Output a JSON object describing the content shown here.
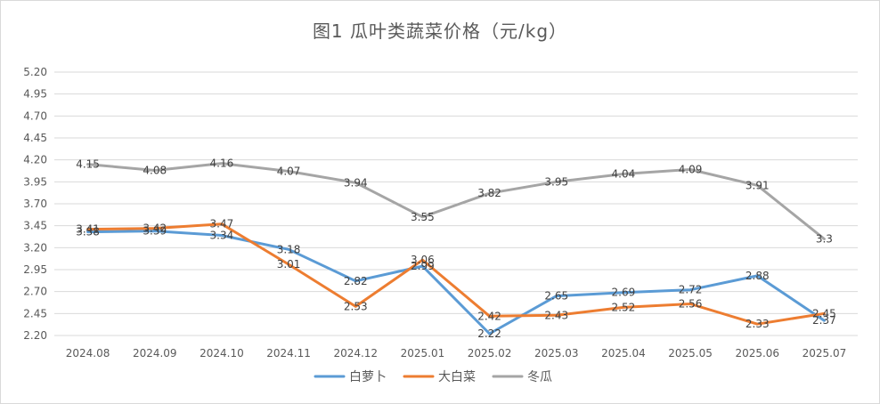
{
  "chart_data": {
    "type": "line",
    "title": "图1  瓜叶类蔬菜价格（元/kg）",
    "categories": [
      "2024.08",
      "2024.09",
      "2024.10",
      "2024.11",
      "2024.12",
      "2025.01",
      "2025.02",
      "2025.03",
      "2025.04",
      "2025.05",
      "2025.06",
      "2025.07"
    ],
    "series": [
      {
        "name": "白萝卜",
        "color": "#5b9bd5",
        "values": [
          3.38,
          3.39,
          3.34,
          3.18,
          2.82,
          2.99,
          2.22,
          2.65,
          2.69,
          2.72,
          2.88,
          2.37
        ]
      },
      {
        "name": "大白菜",
        "color": "#ed7d31",
        "values": [
          3.41,
          3.42,
          3.47,
          3.01,
          2.53,
          3.06,
          2.42,
          2.43,
          2.52,
          2.56,
          2.33,
          2.45
        ]
      },
      {
        "name": "冬瓜",
        "color": "#a5a5a5",
        "values": [
          4.15,
          4.08,
          4.16,
          4.07,
          3.94,
          3.55,
          3.82,
          3.95,
          4.04,
          4.09,
          3.91,
          3.3
        ]
      }
    ],
    "yticks": [
      "2.20",
      "2.45",
      "2.70",
      "2.95",
      "3.20",
      "3.45",
      "3.70",
      "3.95",
      "4.20",
      "4.45",
      "4.70",
      "4.95",
      "5.20"
    ],
    "ylim": [
      2.2,
      5.2
    ],
    "grid": true,
    "legend_position": "bottom"
  }
}
